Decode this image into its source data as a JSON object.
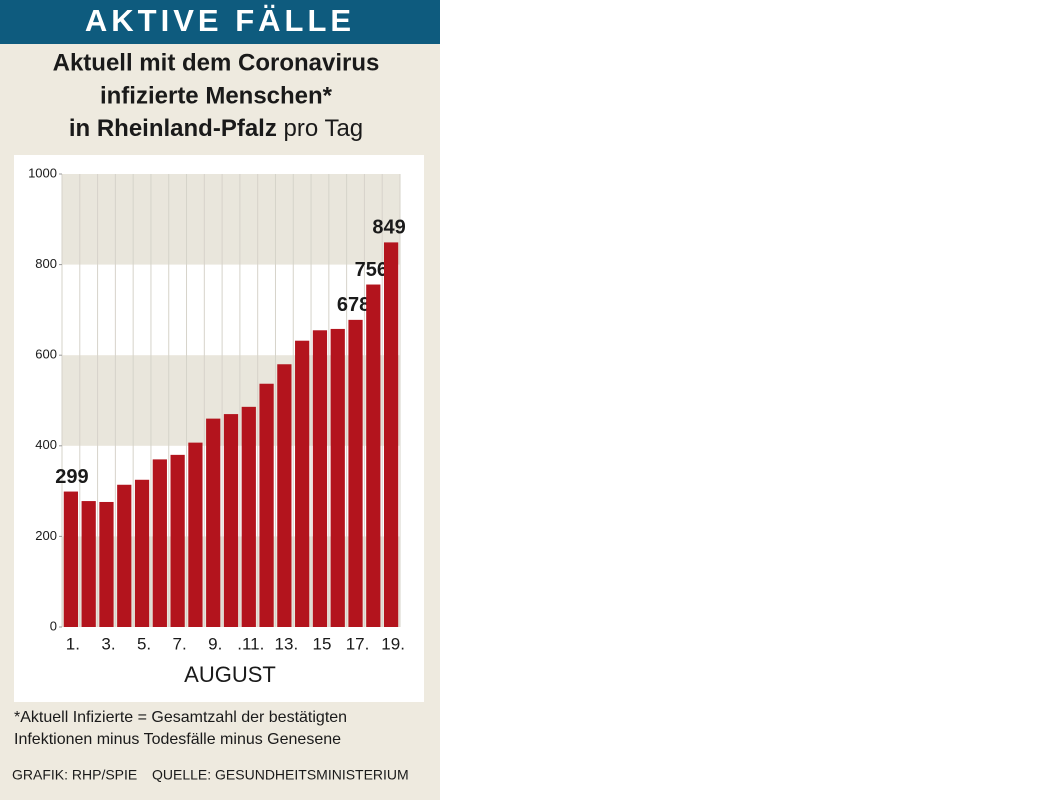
{
  "chart_data": {
    "type": "bar",
    "header": "AKTIVE FÄLLE",
    "title": [
      "Aktuell mit dem Coronavirus",
      "infizierte Menschen*",
      "in Rheinland-Pfalz"
    ],
    "title_suffix": "pro Tag",
    "categories": [
      "1.",
      null,
      "3.",
      null,
      "5.",
      null,
      "7.",
      null,
      "9.",
      null,
      ".11.",
      null,
      "13.",
      null,
      "15",
      null,
      "17.",
      null,
      "19."
    ],
    "values": [
      299,
      278,
      276,
      314,
      325,
      370,
      380,
      407,
      460,
      470,
      486,
      537,
      580,
      632,
      655,
      658,
      678,
      756,
      849
    ],
    "value_labels": [
      "299",
      null,
      null,
      null,
      null,
      null,
      null,
      null,
      null,
      null,
      null,
      null,
      null,
      null,
      null,
      null,
      "678",
      "756",
      "849"
    ],
    "color": "#b3141d",
    "xlabel": "AUGUST",
    "ylim": [
      0,
      1000
    ],
    "yticks": [
      0,
      200,
      400,
      600,
      800,
      1000
    ],
    "footnote": [
      "*Aktuell Infizierte = Gesamtzahl der bestätigten",
      "Infektionen minus Todesfälle minus Genesene"
    ],
    "credits": [
      "GRAFIK: RHP/SPIE",
      "QUELLE: GESUNDHEITSMINISTERIUM"
    ]
  }
}
